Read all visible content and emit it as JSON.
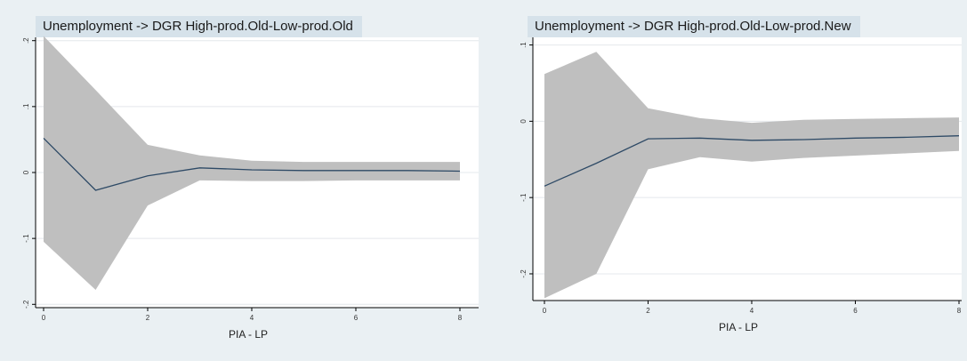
{
  "chart_data": [
    {
      "type": "line",
      "title": "Unemployment -> DGR High-prod.Old-Low-prod.Old",
      "xlabel": "PIA - LP",
      "ylabel": "",
      "x": [
        0,
        1,
        2,
        3,
        4,
        5,
        6,
        7,
        8
      ],
      "xlim": [
        0,
        8
      ],
      "ylim": [
        -0.205,
        0.205
      ],
      "xticks": [
        0,
        2,
        4,
        6,
        8
      ],
      "yticks": [
        -0.2,
        -0.1,
        0,
        0.1,
        0.2
      ],
      "xtick_labels": [
        "0",
        "2",
        "4",
        "6",
        "8"
      ],
      "ytick_labels": [
        "-.2",
        "-.1",
        "0",
        ".1",
        ".2"
      ],
      "grid": "horizontal",
      "series": [
        {
          "values": [
            0.052,
            -0.027,
            -0.005,
            0.007,
            0.004,
            0.003,
            0.003,
            0.003,
            0.002
          ],
          "lower": [
            -0.105,
            -0.178,
            -0.05,
            -0.012,
            -0.013,
            -0.013,
            -0.012,
            -0.012,
            -0.012
          ],
          "upper": [
            0.207,
            0.125,
            0.042,
            0.026,
            0.018,
            0.016,
            0.016,
            0.016,
            0.016
          ]
        }
      ],
      "colors": {
        "line": "#2e4a66",
        "band": "#bfbfbf",
        "plot_bg": "#ffffff",
        "grid": "#e4e8ec"
      }
    },
    {
      "type": "line",
      "title": "Unemployment -> DGR High-prod.Old-Low-prod.New",
      "xlabel": "PIA - LP",
      "ylabel": "",
      "x": [
        0,
        1,
        2,
        3,
        4,
        5,
        6,
        7,
        8
      ],
      "xlim": [
        0,
        8
      ],
      "ylim": [
        -0.235,
        0.11
      ],
      "xticks": [
        0,
        2,
        4,
        6,
        8
      ],
      "yticks": [
        -0.2,
        -0.1,
        0,
        0.1
      ],
      "xtick_labels": [
        "0",
        "2",
        "4",
        "6",
        "8"
      ],
      "ytick_labels": [
        "-.2",
        "-.1",
        "0",
        ".1"
      ],
      "grid": "horizontal",
      "series": [
        {
          "values": [
            -0.085,
            -0.055,
            -0.023,
            -0.022,
            -0.025,
            -0.024,
            -0.022,
            -0.021,
            -0.019
          ],
          "lower": [
            -0.232,
            -0.2,
            -0.063,
            -0.047,
            -0.053,
            -0.048,
            -0.045,
            -0.042,
            -0.039
          ],
          "upper": [
            0.062,
            0.091,
            0.017,
            0.004,
            -0.002,
            0.002,
            0.003,
            0.004,
            0.005
          ]
        }
      ],
      "colors": {
        "line": "#2e4a66",
        "band": "#bfbfbf",
        "plot_bg": "#ffffff",
        "grid": "#e4e8ec"
      }
    }
  ]
}
